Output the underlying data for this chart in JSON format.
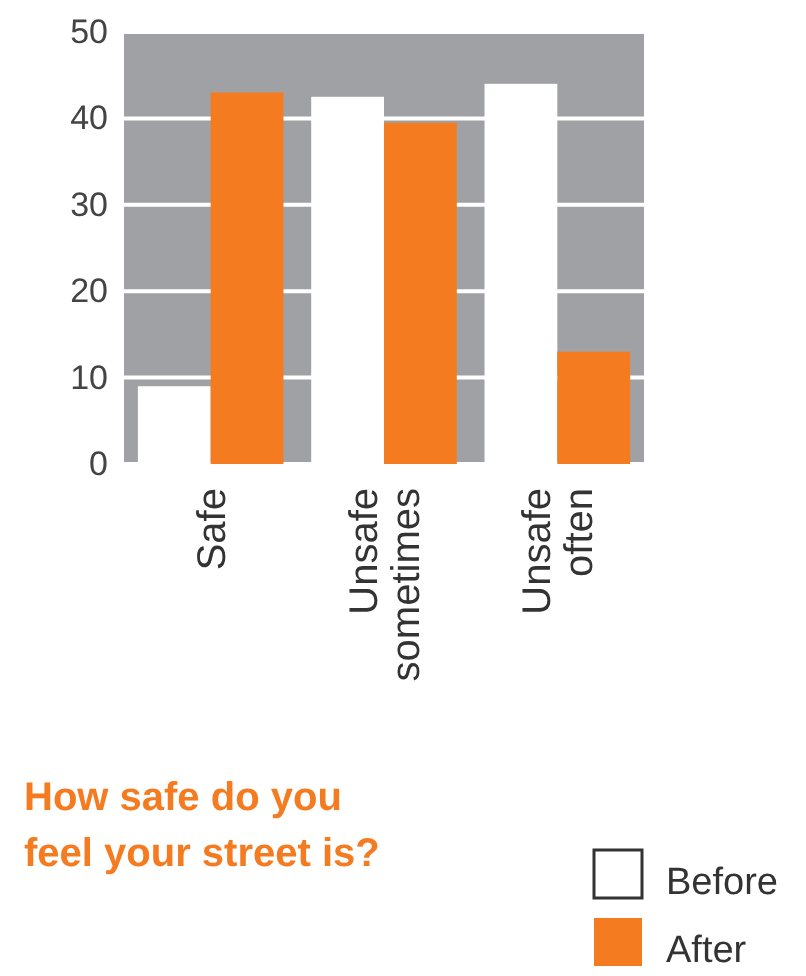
{
  "chart_data": {
    "type": "bar",
    "title": "How safe do you feel your street is?",
    "categories": [
      "Safe",
      "Unsafe sometimes",
      "Unsafe often"
    ],
    "series": [
      {
        "name": "Before",
        "color": "#ffffff",
        "values": [
          9,
          42.5,
          44
        ]
      },
      {
        "name": "After",
        "color": "#f47b20",
        "values": [
          43,
          39.5,
          13
        ]
      }
    ],
    "ylim": [
      0,
      50
    ],
    "yticks": [
      0,
      10,
      20,
      30,
      40,
      50
    ],
    "grid": "y",
    "legend": "bottom right"
  }
}
